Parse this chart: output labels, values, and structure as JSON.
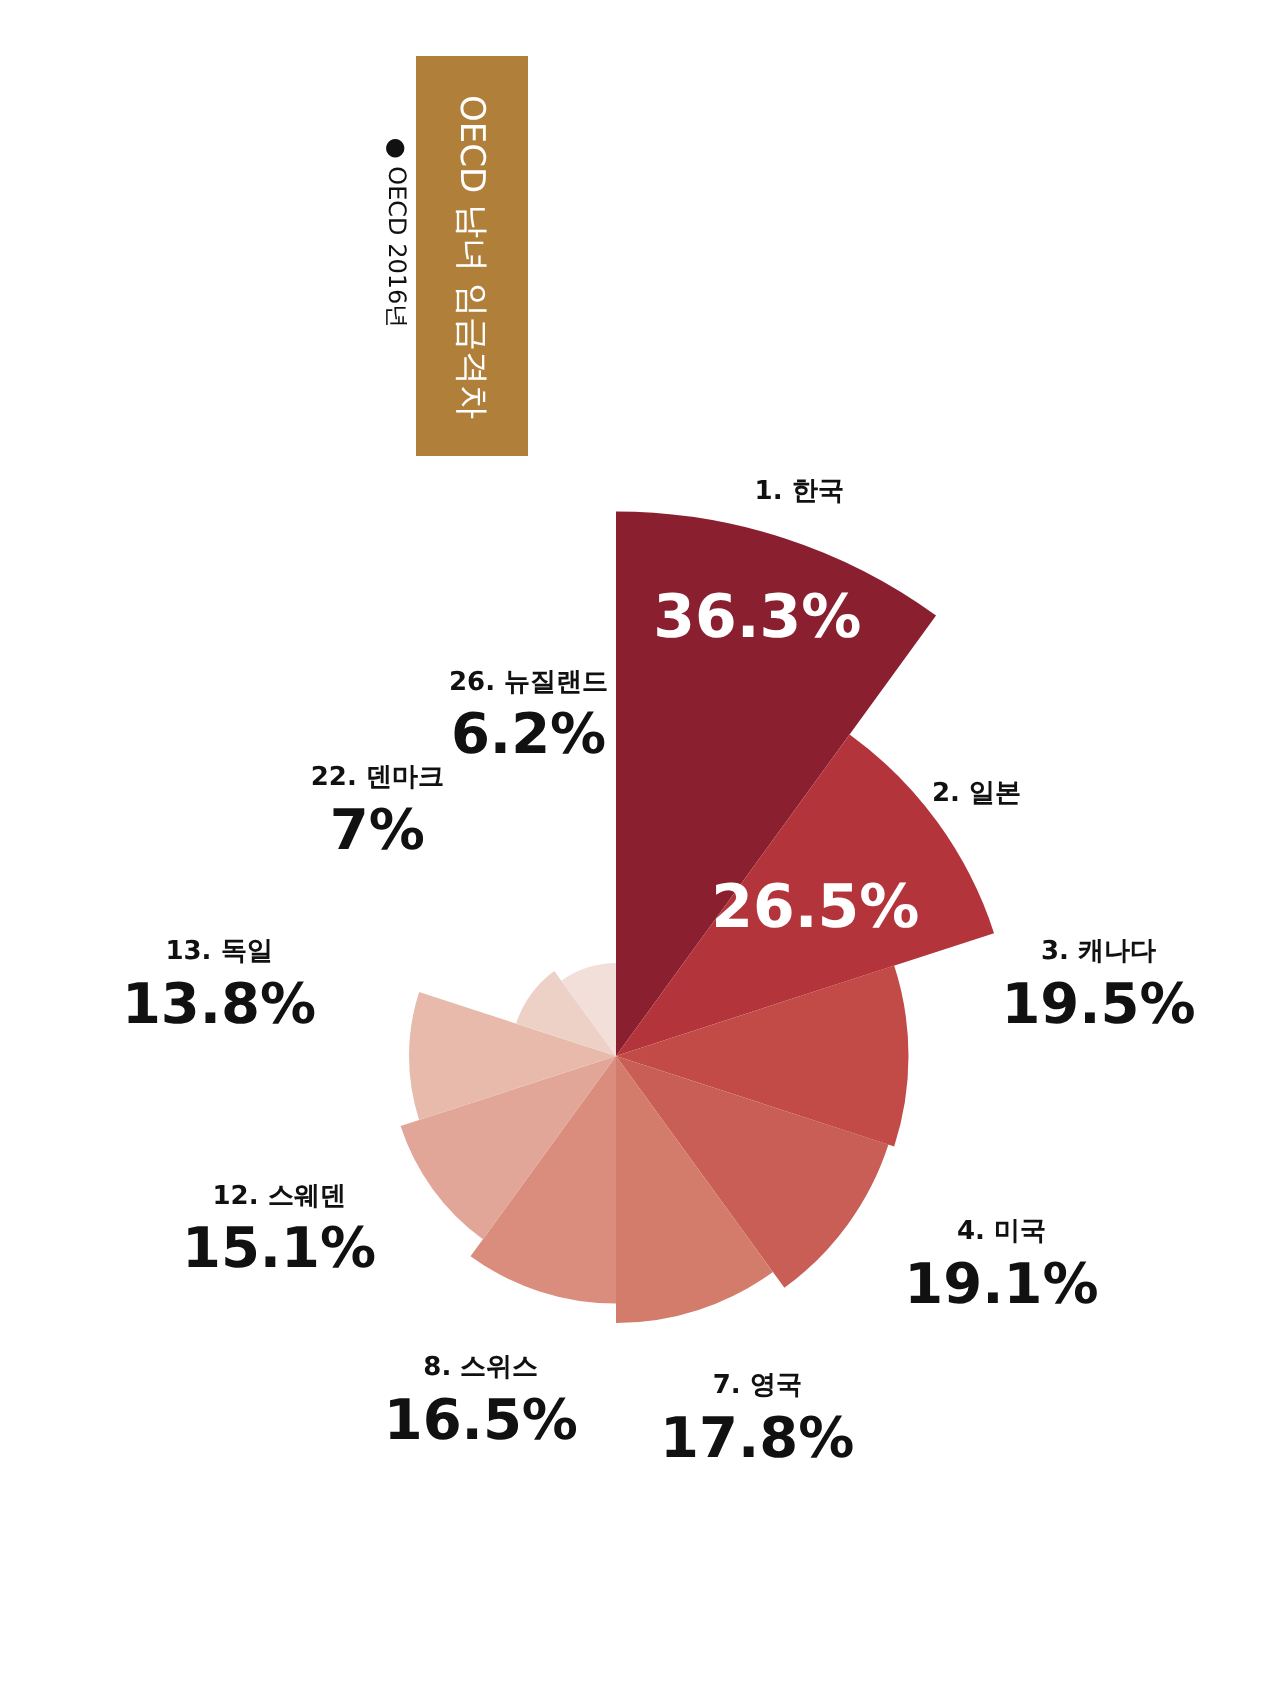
{
  "chart_data": {
    "type": "other",
    "title": "OECD 남녀 임금격차",
    "annotations": [
      "● OECD 2016년"
    ],
    "categories": [
      "1. 한국",
      "2. 일본",
      "3. 캐나다",
      "4. 미국",
      "7. 영국",
      "8. 스위스",
      "12. 스웨덴",
      "13. 독일",
      "22. 덴마크",
      "26. 뉴질랜드"
    ],
    "values": [
      36.3,
      26.5,
      19.5,
      19.1,
      17.8,
      16.5,
      15.1,
      13.8,
      7,
      6.2
    ],
    "value_labels": [
      "36.3%",
      "26.5%",
      "19.5%",
      "19.1%",
      "17.8%",
      "16.5%",
      "15.1%",
      "13.8%",
      "7%",
      "6.2%"
    ],
    "colors": [
      "#8a1f30",
      "#b3343b",
      "#c24b48",
      "#c95e56",
      "#d47c6c",
      "#da8d7d",
      "#e1a697",
      "#e7baac",
      "#edd0c6",
      "#f2dfd9"
    ]
  }
}
